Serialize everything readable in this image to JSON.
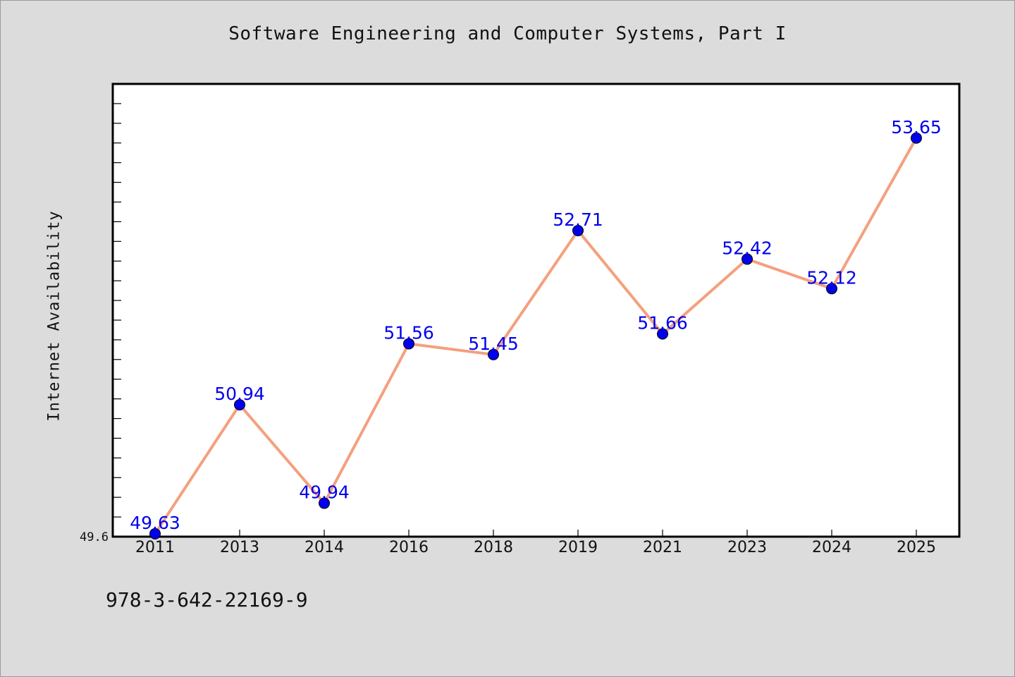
{
  "chart_data": {
    "type": "line",
    "title": "Software Engineering and Computer Systems, Part I",
    "xlabel": "",
    "ylabel": "Internet Availability",
    "categories": [
      "2011",
      "2013",
      "2014",
      "2016",
      "2018",
      "2019",
      "2021",
      "2023",
      "2024",
      "2025"
    ],
    "series": [
      {
        "values": [
          49.63,
          50.94,
          49.94,
          51.56,
          51.45,
          52.71,
          51.66,
          52.42,
          52.12,
          53.65
        ],
        "line_color": "#f4a07e",
        "marker_color": "#0000ee"
      }
    ],
    "data_labels": [
      "49.63",
      "50.94",
      "49.94",
      "51.56",
      "51.45",
      "52.71",
      "51.66",
      "52.42",
      "52.12",
      "53.65"
    ],
    "data_label_color": "#0000ee",
    "y_tick_labels": [
      {
        "value": 49.6,
        "label": "49.6"
      }
    ],
    "ylim": [
      49.6,
      54.2
    ],
    "y_minor_tick_step": 0.2,
    "grid": false,
    "legend": "none"
  },
  "footer_text": "978-3-642-22169-9",
  "colors": {
    "background": "#dcdcdc",
    "plot_background": "#ffffff"
  }
}
